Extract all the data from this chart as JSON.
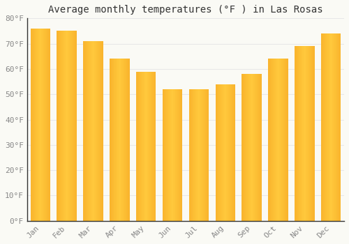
{
  "months": [
    "Jan",
    "Feb",
    "Mar",
    "Apr",
    "May",
    "Jun",
    "Jul",
    "Aug",
    "Sep",
    "Oct",
    "Nov",
    "Dec"
  ],
  "values": [
    76,
    75,
    71,
    64,
    59,
    52,
    52,
    54,
    58,
    64,
    69,
    74
  ],
  "bar_color_center": "#FFC93C",
  "bar_color_edge": "#F5A623",
  "title": "Average monthly temperatures (°F ) in Las Rosas",
  "ylim": [
    0,
    80
  ],
  "yticks": [
    0,
    10,
    20,
    30,
    40,
    50,
    60,
    70,
    80
  ],
  "ytick_labels": [
    "0°F",
    "10°F",
    "20°F",
    "30°F",
    "40°F",
    "50°F",
    "60°F",
    "70°F",
    "80°F"
  ],
  "background_color": "#FAFAF5",
  "grid_color": "#E8E8E8",
  "title_fontsize": 10,
  "tick_fontsize": 8,
  "tick_color": "#888888",
  "font_family": "monospace",
  "bar_width": 0.75
}
